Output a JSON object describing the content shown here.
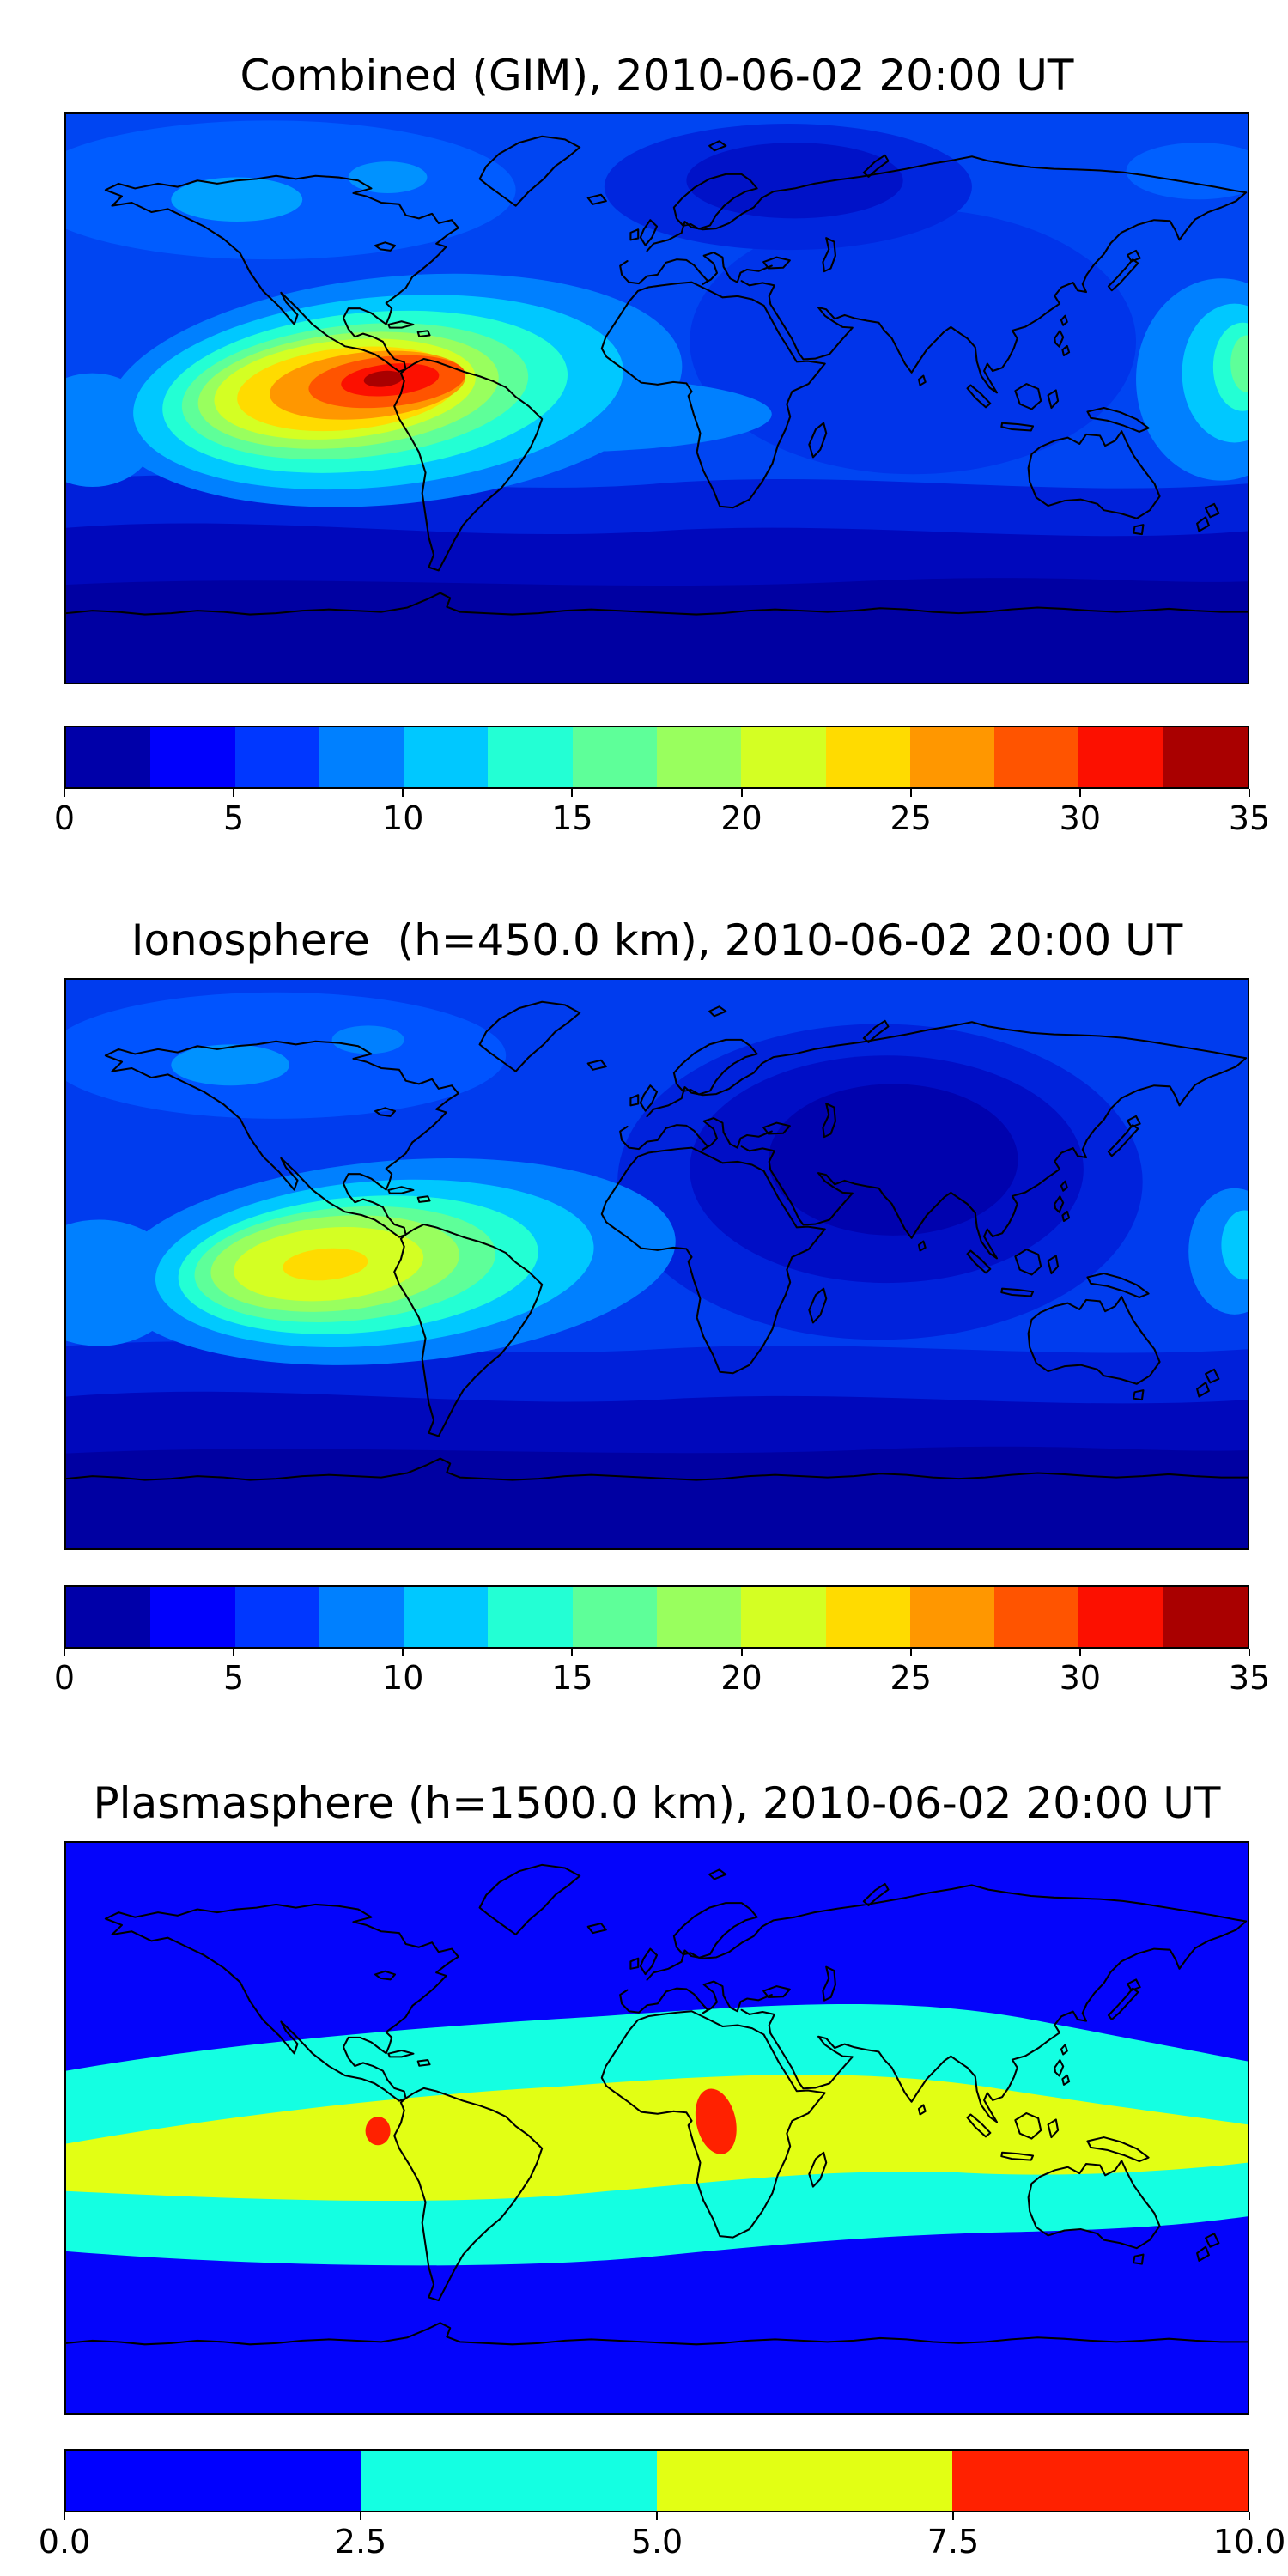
{
  "figure": {
    "background": "#ffffff",
    "panels": [
      {
        "id": "combined",
        "title": "Combined (GIM), 2010-06-02 20:00 UT",
        "colorbar": {
          "orientation": "horizontal",
          "n_segments": 14,
          "segment_colors": [
            "#0000A9",
            "#0000FC",
            "#0037FF",
            "#0080FF",
            "#00C8FF",
            "#23FFD4",
            "#5EFF99",
            "#99FF5E",
            "#D4FF23",
            "#FFDB00",
            "#FF9700",
            "#FF5400",
            "#FC1000",
            "#A90000"
          ],
          "tick_labels": [
            "0",
            "5",
            "10",
            "15",
            "20",
            "25",
            "30",
            "35"
          ],
          "tick_values": [
            0,
            5,
            10,
            15,
            20,
            25,
            30,
            35
          ]
        }
      },
      {
        "id": "ionosphere",
        "title": "Ionosphere  (h=450.0 km), 2010-06-02 20:00 UT",
        "colorbar": {
          "orientation": "horizontal",
          "n_segments": 14,
          "segment_colors": [
            "#0000A9",
            "#0000FC",
            "#0037FF",
            "#0080FF",
            "#00C8FF",
            "#23FFD4",
            "#5EFF99",
            "#99FF5E",
            "#D4FF23",
            "#FFDB00",
            "#FF9700",
            "#FF5400",
            "#FC1000",
            "#A90000"
          ],
          "tick_labels": [
            "0",
            "5",
            "10",
            "15",
            "20",
            "25",
            "30",
            "35"
          ],
          "tick_values": [
            0,
            5,
            10,
            15,
            20,
            25,
            30,
            35
          ]
        }
      },
      {
        "id": "plasmasphere",
        "title": "Plasmasphere (h=1500.0 km), 2010-06-02 20:00 UT",
        "colorbar": {
          "orientation": "horizontal",
          "n_segments": 4,
          "segment_colors": [
            "#0000FF",
            "#14FFE2",
            "#E2FF14",
            "#FF2100"
          ],
          "tick_labels": [
            "0.0",
            "2.5",
            "5.0",
            "7.5",
            "10.0"
          ],
          "tick_values": [
            0,
            2.5,
            5,
            7.5,
            10
          ]
        }
      }
    ]
  },
  "chart_data": [
    {
      "type": "heatmap",
      "subtype": "filled-contour world map (equirectangular)",
      "title": "Combined (GIM), 2010-06-02 20:00 UT",
      "lon_range": [
        -180,
        180
      ],
      "lat_range": [
        -90,
        90
      ],
      "colormap": "jet",
      "value_range": [
        0,
        35
      ],
      "n_levels": 14,
      "contour_step": 2.5,
      "colorbar_ticks": [
        0,
        5,
        10,
        15,
        20,
        25,
        30,
        35
      ],
      "grid": false,
      "legend": "horizontal colorbar below map",
      "features": [
        {
          "label": "primary maximum (equatorial anomaly, dark red core)",
          "lon": -85,
          "lat": 3,
          "value": 33
        },
        {
          "label": "broad enhanced region over eastern Pacific / northern South America",
          "lon": -95,
          "lat": 0,
          "value": "15-30"
        },
        {
          "label": "secondary enhancement at right map edge near dateline",
          "lon": 178,
          "lat": 11,
          "value": 20
        },
        {
          "label": "equatorial band of ~10-12 stretching across Atlantic toward Africa",
          "lat": -3,
          "value": 11
        },
        {
          "label": "low patch over northern Europe / Russia",
          "lon": 40,
          "lat": 66,
          "value": 5
        },
        {
          "label": "minimum band over southern high latitudes",
          "lat": -65,
          "value": 2
        }
      ]
    },
    {
      "type": "heatmap",
      "subtype": "filled-contour world map (equirectangular)",
      "title": "Ionosphere  (h=450.0 km), 2010-06-02 20:00 UT",
      "lon_range": [
        -180,
        180
      ],
      "lat_range": [
        -90,
        90
      ],
      "colormap": "jet",
      "value_range": [
        0,
        35
      ],
      "n_levels": 14,
      "contour_step": 2.5,
      "colorbar_ticks": [
        0,
        5,
        10,
        15,
        20,
        25,
        30,
        35
      ],
      "grid": false,
      "legend": "horizontal colorbar below map",
      "features": [
        {
          "label": "maximum (yellow core) over eastern Pacific / South America",
          "lon": -100,
          "lat": 0,
          "value": 22
        },
        {
          "label": "deep minimum over Middle East / India / Indian Ocean",
          "lon": 70,
          "lat": 30,
          "value": 2
        },
        {
          "label": "small enhancement at right map edge near equator",
          "lon": 178,
          "lat": 6,
          "value": 12
        },
        {
          "label": "minimum band over southern high latitudes",
          "lat": -65,
          "value": 2
        }
      ]
    },
    {
      "type": "heatmap",
      "subtype": "filled-contour world map (equirectangular)",
      "title": "Plasmasphere (h=1500.0 km), 2010-06-02 20:00 UT",
      "lon_range": [
        -180,
        180
      ],
      "lat_range": [
        -90,
        90
      ],
      "colormap": "jet",
      "value_range": [
        0,
        10
      ],
      "n_levels": 4,
      "contour_step": 2.5,
      "colorbar_ticks": [
        0,
        2.5,
        5,
        7.5,
        10
      ],
      "grid": false,
      "legend": "horizontal colorbar below map",
      "features": [
        {
          "label": "blue background (0-2.5) at middle/high latitudes",
          "value": 1.5
        },
        {
          "label": "cyan band (2.5-5.0) along geomagnetic equator",
          "lat_extent": "approx +/-40 deg, tilted, highest over Asia"
        },
        {
          "label": "yellow band (5.0-7.5) along geomagnetic equator",
          "lat_extent": "approx +/-18 deg, widest over Africa"
        },
        {
          "label": "maximum blob (>7.5, red) over central Africa",
          "lon": 18,
          "lat": 2,
          "value": 8.5
        },
        {
          "label": "small maximum blob (>7.5, red) over eastern Pacific near South America",
          "lon": -85,
          "lat": -1,
          "value": 8
        }
      ]
    }
  ]
}
